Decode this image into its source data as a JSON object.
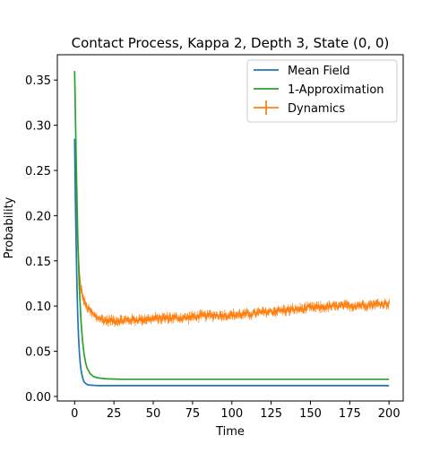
{
  "chart_data": {
    "type": "line",
    "title": "Contact Process, Kappa 2, Depth 3, State (0, 0)",
    "xlabel": "Time",
    "ylabel": "Probability",
    "xlim": [
      -11,
      209
    ],
    "ylim": [
      -0.005,
      0.378
    ],
    "xticks": [
      0,
      25,
      50,
      75,
      100,
      125,
      150,
      175,
      200
    ],
    "yticks": [
      0.0,
      0.05,
      0.1,
      0.15,
      0.2,
      0.25,
      0.3,
      0.35
    ],
    "ytick_labels": [
      "0.00",
      "0.05",
      "0.10",
      "0.15",
      "0.20",
      "0.25",
      "0.30",
      "0.35"
    ],
    "grid": false,
    "legend_position": "top-right",
    "series": [
      {
        "name": "Mean Field",
        "color": "#1f77b4",
        "style": "line",
        "x": [
          0,
          0.5,
          1,
          1.5,
          2,
          2.5,
          3,
          3.5,
          4,
          5,
          6,
          8,
          10,
          15,
          200
        ],
        "y": [
          0.285,
          0.215,
          0.165,
          0.12,
          0.088,
          0.065,
          0.049,
          0.038,
          0.03,
          0.021,
          0.016,
          0.013,
          0.0125,
          0.012,
          0.012
        ]
      },
      {
        "name": "1-Approximation",
        "color": "#2ca02c",
        "style": "line",
        "x": [
          0,
          1,
          2,
          3,
          4,
          5,
          6,
          7,
          8,
          10,
          12,
          15,
          20,
          30,
          200
        ],
        "y": [
          0.36,
          0.26,
          0.175,
          0.12,
          0.085,
          0.062,
          0.047,
          0.037,
          0.031,
          0.025,
          0.022,
          0.0205,
          0.0195,
          0.019,
          0.019
        ]
      },
      {
        "name": "Dynamics",
        "color": "#ff7f0e",
        "style": "errorbar",
        "x": [
          0,
          1,
          2,
          3,
          4,
          5,
          6,
          8,
          10,
          12,
          15,
          18,
          20,
          25,
          30,
          40,
          50,
          60,
          70,
          75,
          80,
          90,
          100,
          110,
          120,
          125,
          130,
          140,
          150,
          160,
          170,
          175,
          180,
          190,
          200
        ],
        "y": [
          0.28,
          0.22,
          0.165,
          0.135,
          0.12,
          0.112,
          0.105,
          0.098,
          0.094,
          0.09,
          0.087,
          0.085,
          0.084,
          0.084,
          0.084,
          0.085,
          0.086,
          0.087,
          0.087,
          0.088,
          0.089,
          0.09,
          0.09,
          0.091,
          0.093,
          0.094,
          0.095,
          0.096,
          0.098,
          0.099,
          0.1,
          0.1,
          0.101,
          0.102,
          0.103
        ],
        "noise": 0.006
      }
    ]
  }
}
